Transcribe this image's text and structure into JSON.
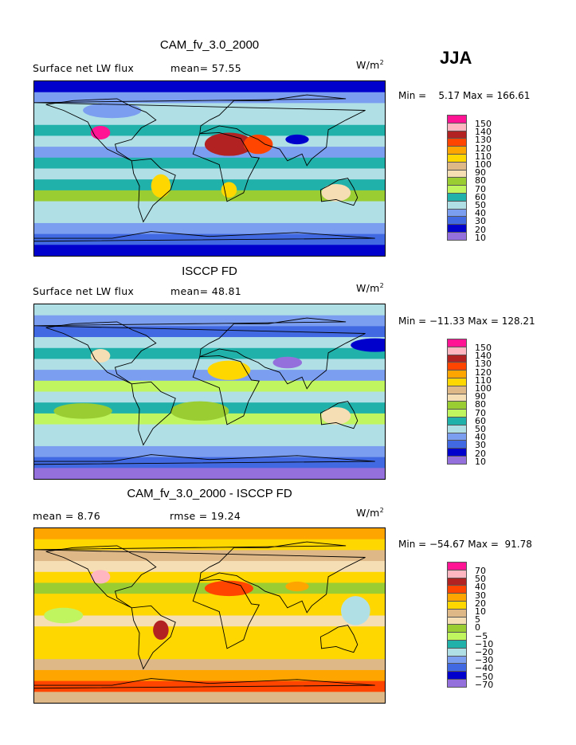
{
  "season": "JJA",
  "units_label": "W/m",
  "units_sup": "2",
  "palette": [
    "#ff1493",
    "#ffb6c1",
    "#b22222",
    "#ff4500",
    "#ffa500",
    "#ffd700",
    "#deb887",
    "#f5deb3",
    "#9acd32",
    "#c0f560",
    "#20b2aa",
    "#b0e0e6",
    "#7b9ef0",
    "#4169e1",
    "#0000cd",
    "#9370db"
  ],
  "chart_data": [
    {
      "type": "heatmap",
      "title": "CAM_fv_3.0_2000",
      "left_label": "Surface net LW flux",
      "stat_label": "mean=  57.55",
      "min_max": "Min =    5.17 Max = 166.61",
      "min": 5.17,
      "max": 166.61,
      "mean": 57.55,
      "levels": [
        "150",
        "140",
        "130",
        "120",
        "110",
        "100",
        "90",
        "80",
        "70",
        "60",
        "50",
        "40",
        "30",
        "20",
        "10"
      ],
      "level_values": [
        150,
        140,
        130,
        120,
        110,
        100,
        90,
        80,
        70,
        60,
        50,
        40,
        30,
        20,
        10
      ],
      "zonal_approx": [
        15,
        30,
        45,
        40,
        55,
        45,
        35,
        55,
        45,
        55,
        70,
        45,
        40,
        30,
        20,
        15
      ],
      "blobs": [
        {
          "lon": 20,
          "lat": 25,
          "rx": 25,
          "ry": 12,
          "v": 135
        },
        {
          "lon": 50,
          "lat": 25,
          "rx": 15,
          "ry": 10,
          "v": 120
        },
        {
          "lon": -112,
          "lat": 37,
          "rx": 10,
          "ry": 7,
          "v": 155
        },
        {
          "lon": 130,
          "lat": -25,
          "rx": 15,
          "ry": 9,
          "v": 85
        },
        {
          "lon": -50,
          "lat": -18,
          "rx": 10,
          "ry": 12,
          "v": 105
        },
        {
          "lon": 20,
          "lat": -22,
          "rx": 8,
          "ry": 8,
          "v": 105
        },
        {
          "lon": 95,
          "lat": 55,
          "rx": 40,
          "ry": 8,
          "v": 40
        },
        {
          "lon": -100,
          "lat": 60,
          "rx": 30,
          "ry": 8,
          "v": 30
        },
        {
          "lon": 90,
          "lat": 30,
          "rx": 12,
          "ry": 5,
          "v": 15
        }
      ]
    },
    {
      "type": "heatmap",
      "title": "ISCCP FD",
      "left_label": "Surface net LW flux",
      "stat_label": "mean=  48.81",
      "min_max": "Min = −11.33 Max = 128.21",
      "min": -11.33,
      "max": 128.21,
      "mean": 48.81,
      "levels": [
        "150",
        "140",
        "130",
        "120",
        "110",
        "100",
        "90",
        "80",
        "70",
        "60",
        "50",
        "40",
        "30",
        "20",
        "10"
      ],
      "level_values": [
        150,
        140,
        130,
        120,
        110,
        100,
        90,
        80,
        70,
        60,
        50,
        40,
        30,
        20,
        10
      ],
      "zonal_approx": [
        45,
        30,
        25,
        40,
        50,
        45,
        35,
        60,
        45,
        55,
        65,
        45,
        40,
        30,
        20,
        5
      ],
      "blobs": [
        {
          "lon": 20,
          "lat": 22,
          "rx": 22,
          "ry": 10,
          "v": 105
        },
        {
          "lon": 80,
          "lat": 30,
          "rx": 15,
          "ry": 6,
          "v": 5
        },
        {
          "lon": -112,
          "lat": 37,
          "rx": 10,
          "ry": 7,
          "v": 85
        },
        {
          "lon": 130,
          "lat": -25,
          "rx": 15,
          "ry": 9,
          "v": 85
        },
        {
          "lon": -10,
          "lat": -20,
          "rx": 30,
          "ry": 10,
          "v": 75
        },
        {
          "lon": -130,
          "lat": -20,
          "rx": 30,
          "ry": 8,
          "v": 75
        },
        {
          "lon": 170,
          "lat": 48,
          "rx": 25,
          "ry": 7,
          "v": 15
        }
      ]
    },
    {
      "type": "heatmap",
      "title": "CAM_fv_3.0_2000 - ISCCP FD",
      "left_label": "mean =    8.76",
      "stat_label": "rmse =  19.24",
      "min_max": "Min = −54.67 Max =  91.78",
      "min": -54.67,
      "max": 91.78,
      "mean": 8.76,
      "rmse": 19.24,
      "levels": [
        "70",
        "50",
        "40",
        "30",
        "20",
        "10",
        "5",
        "0",
        "−5",
        "−10",
        "−20",
        "−30",
        "−40",
        "−50",
        "−70"
      ],
      "level_values": [
        70,
        50,
        40,
        30,
        20,
        10,
        5,
        0,
        -5,
        -10,
        -20,
        -30,
        -40,
        -50,
        -70
      ],
      "zonal_approx": [
        25,
        15,
        8,
        2,
        12,
        -3,
        12,
        15,
        3,
        12,
        15,
        12,
        5,
        25,
        35,
        8
      ],
      "blobs": [
        {
          "lon": 20,
          "lat": 28,
          "rx": 25,
          "ry": 8,
          "v": 35
        },
        {
          "lon": -112,
          "lat": 40,
          "rx": 10,
          "ry": 7,
          "v": 55
        },
        {
          "lon": -50,
          "lat": -15,
          "rx": 8,
          "ry": 10,
          "v": 45
        },
        {
          "lon": 90,
          "lat": 30,
          "rx": 12,
          "ry": 5,
          "v": 25
        },
        {
          "lon": -150,
          "lat": 0,
          "rx": 20,
          "ry": 8,
          "v": -8
        },
        {
          "lon": 150,
          "lat": 5,
          "rx": 15,
          "ry": 15,
          "v": -25
        }
      ]
    }
  ]
}
